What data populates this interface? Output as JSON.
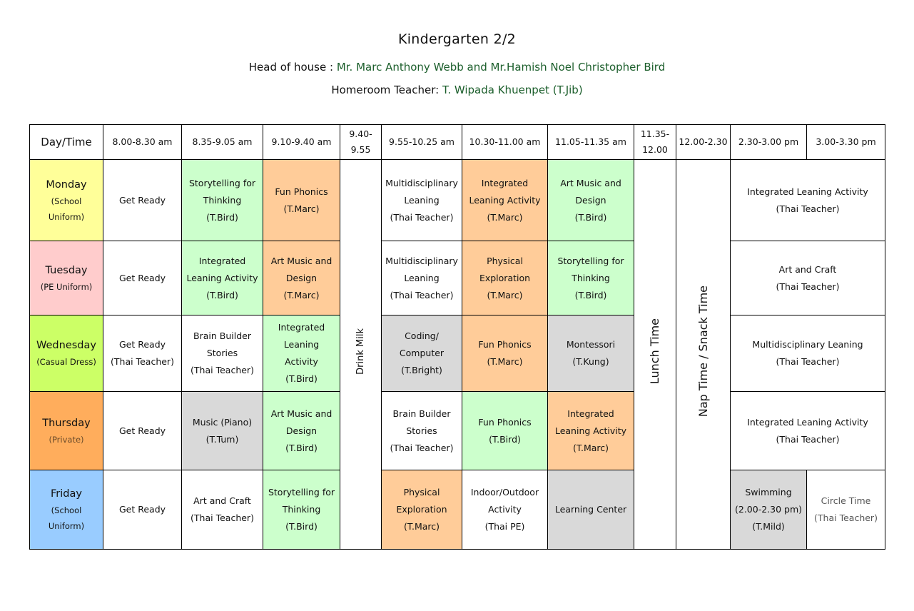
{
  "header": {
    "title": "Kindergarten 2/2",
    "head_label": "Head of house :",
    "head_names": "Mr. Marc Anthony Webb and  Mr.Hamish  Noel Christopher Bird",
    "homeroom_label": "Homeroom Teacher:",
    "homeroom_name": "T. Wipada Khuenpet (T.Jib)"
  },
  "colors": {
    "monday": "#ffff99",
    "tuesday": "#ffcccc",
    "wednesday": "#ccff66",
    "thursday": "#ffad5c",
    "friday": "#99ccff",
    "green_cell": "#ccffcc",
    "orange_cell": "#ffcc99",
    "grey_cell": "#d9d9d9"
  },
  "columns": {
    "day_time": "Day/Time",
    "c1": "8.00-8.30 am",
    "c2": "8.35-9.05 am",
    "c3": "9.10-9.40 am",
    "c4a": "9.40-",
    "c4b": "9.55",
    "c5": "9.55-10.25 am",
    "c6": "10.30-11.00 am",
    "c7": "11.05-11.35 am",
    "c8a": "11.35-",
    "c8b": "12.00",
    "c9": "12.00-2.30",
    "c10": "2.30-3.00 pm",
    "c11": "3.00-3.30 pm"
  },
  "breaks": {
    "drink_milk": "Drink Milk",
    "lunch_time": "Lunch Time",
    "nap_time": "Nap Time / Snack Time"
  },
  "days": {
    "monday": {
      "name": "Monday",
      "sub1": "(School",
      "sub2": "Uniform)",
      "c1": "Get Ready",
      "c2": [
        "Storytelling for",
        "Thinking",
        "(T.Bird)"
      ],
      "c3": [
        "Fun Phonics",
        "(T.Marc)"
      ],
      "c5": [
        "Multidisciplinary",
        "Leaning",
        "(Thai Teacher)"
      ],
      "c6": [
        "Integrated",
        "Leaning Activity",
        "(T.Marc)"
      ],
      "c7": [
        "Art Music and",
        "Design",
        "(T.Bird)"
      ],
      "c10": [
        "Integrated Leaning Activity",
        "(Thai Teacher)"
      ]
    },
    "tuesday": {
      "name": "Tuesday",
      "sub1": "(PE Uniform)",
      "c1": "Get Ready",
      "c2": [
        "Integrated",
        "Leaning Activity",
        "(T.Bird)"
      ],
      "c3": [
        "Art Music and",
        "Design",
        "(T.Marc)"
      ],
      "c5": [
        "Multidisciplinary",
        "Leaning",
        "(Thai Teacher)"
      ],
      "c6": [
        "Physical",
        "Exploration",
        "(T.Marc)"
      ],
      "c7": [
        "Storytelling for",
        "Thinking",
        "(T.Bird)"
      ],
      "c10": [
        "Art and Craft",
        "(Thai Teacher)"
      ]
    },
    "wednesday": {
      "name": "Wednesday",
      "sub1": "(Casual Dress)",
      "c1": [
        "Get Ready",
        "(Thai Teacher)"
      ],
      "c2": [
        "Brain Builder",
        "Stories",
        "(Thai Teacher)"
      ],
      "c3": [
        "Integrated",
        "Leaning",
        "Activity",
        "(T.Bird)"
      ],
      "c5": [
        "Coding/",
        "Computer",
        "(T.Bright)"
      ],
      "c6": [
        "Fun Phonics",
        "(T.Marc)"
      ],
      "c7": [
        "Montessori",
        "(T.Kung)"
      ],
      "c10": [
        "Multidisciplinary Leaning",
        "(Thai Teacher)"
      ]
    },
    "thursday": {
      "name": "Thursday",
      "sub1": "(Private)",
      "c1": "Get Ready",
      "c2": [
        "Music (Piano)",
        "(T.Tum)"
      ],
      "c3": [
        "Art Music and",
        "Design",
        "(T.Bird)"
      ],
      "c5": [
        "Brain Builder",
        "Stories",
        "(Thai Teacher)"
      ],
      "c6": [
        "Fun Phonics",
        "(T.Bird)"
      ],
      "c7": [
        "Integrated",
        "Leaning Activity",
        "(T.Marc)"
      ],
      "c10": [
        "Integrated Leaning Activity",
        "(Thai Teacher)"
      ]
    },
    "friday": {
      "name": "Friday",
      "sub1": "(School",
      "sub2": "Uniform)",
      "c1": "Get Ready",
      "c2": [
        "Art and Craft",
        "(Thai Teacher)"
      ],
      "c3": [
        "Storytelling for",
        "Thinking",
        "(T.Bird)"
      ],
      "c5": [
        "Physical",
        "Exploration",
        "(T.Marc)"
      ],
      "c6": [
        "Indoor/Outdoor",
        "Activity",
        "(Thai PE)"
      ],
      "c7": "Learning Center",
      "c10": [
        "Swimming",
        "(2.00-2.30 pm)",
        "(T.Mild)"
      ],
      "c11": [
        "Circle Time",
        "(Thai Teacher)"
      ]
    }
  }
}
